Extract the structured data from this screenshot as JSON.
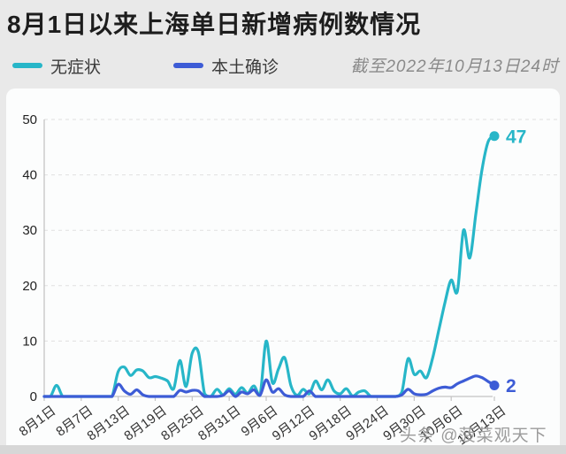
{
  "header": {
    "title": "8月1日以来上海单日新增病例数情况",
    "as_of": "截至2022年10月13日24时"
  },
  "legend": [
    {
      "label": "无症状",
      "color": "#27b6c8"
    },
    {
      "label": "本土确诊",
      "color": "#3d5cd6"
    }
  ],
  "watermark": "头条 @菠菜观天下",
  "colors": {
    "asymptomatic": "#27b6c8",
    "confirmed": "#3d5cd6",
    "axis": "#c4c4c4",
    "grid": "#e0e0e0",
    "tick_label": "#333333",
    "background": "#e9e9e9",
    "card": "#fcfdfd"
  },
  "chart_data": {
    "type": "line",
    "title": "8月1日以来上海单日新增病例数情况",
    "subtitle": "截至2022年10月13日24时",
    "grid": "dashed-horizontal",
    "legend_position": "top-left",
    "ylim": [
      0,
      50
    ],
    "y_ticks": [
      0,
      10,
      20,
      30,
      40,
      50
    ],
    "x_tick_labels": [
      "8月1日",
      "8月7日",
      "8月13日",
      "8月19日",
      "8月25日",
      "8月31日",
      "9月6日",
      "9月12日",
      "9月18日",
      "9月24日",
      "9月30日",
      "10月6日",
      "10月13日"
    ],
    "x_tick_days": [
      0,
      6,
      12,
      18,
      24,
      30,
      36,
      42,
      48,
      54,
      60,
      66,
      73
    ],
    "x_dates": [
      "8月1日",
      "8月2日",
      "8月3日",
      "8月4日",
      "8月5日",
      "8月6日",
      "8月7日",
      "8月8日",
      "8月9日",
      "8月10日",
      "8月11日",
      "8月12日",
      "8月13日",
      "8月14日",
      "8月15日",
      "8月16日",
      "8月17日",
      "8月18日",
      "8月19日",
      "8月20日",
      "8月21日",
      "8月22日",
      "8月23日",
      "8月24日",
      "8月25日",
      "8月26日",
      "8月27日",
      "8月28日",
      "8月29日",
      "8月30日",
      "8月31日",
      "9月1日",
      "9月2日",
      "9月3日",
      "9月4日",
      "9月5日",
      "9月6日",
      "9月7日",
      "9月8日",
      "9月9日",
      "9月10日",
      "9月11日",
      "9月12日",
      "9月13日",
      "9月14日",
      "9月15日",
      "9月16日",
      "9月17日",
      "9月18日",
      "9月19日",
      "9月20日",
      "9月21日",
      "9月22日",
      "9月23日",
      "9月24日",
      "9月25日",
      "9月26日",
      "9月27日",
      "9月28日",
      "9月29日",
      "9月30日",
      "10月1日",
      "10月2日",
      "10月3日",
      "10月4日",
      "10月5日",
      "10月6日",
      "10月7日",
      "10月8日",
      "10月9日",
      "10月10日",
      "10月11日",
      "10月12日",
      "10月13日"
    ],
    "series": [
      {
        "name": "无症状",
        "color": "#27b6c8",
        "end_label": "47",
        "end_value": 47,
        "values": [
          0,
          0,
          2,
          0,
          0,
          0,
          0,
          0,
          0,
          0,
          0,
          0,
          4.5,
          5.3,
          3.8,
          4.8,
          4.6,
          3.4,
          3.6,
          3.3,
          2.8,
          1.4,
          6.5,
          1.8,
          7.8,
          8,
          0.5,
          0,
          1.3,
          0.3,
          1.4,
          0.4,
          1.6,
          0.6,
          1.9,
          0.2,
          10,
          2.5,
          5,
          7,
          2,
          0.2,
          1.3,
          0.5,
          2.8,
          1.2,
          3,
          1,
          0.5,
          1.4,
          0.1,
          0.8,
          1,
          0,
          0,
          0,
          0,
          0,
          0.8,
          6.8,
          4,
          4.6,
          3.4,
          7,
          12,
          17,
          21,
          19,
          30,
          25,
          33,
          41,
          46,
          47
        ]
      },
      {
        "name": "本土确诊",
        "color": "#3d5cd6",
        "end_label": "2",
        "end_value": 2,
        "values": [
          0,
          0,
          0,
          0,
          0,
          0,
          0,
          0,
          0,
          0,
          0,
          0,
          2.2,
          1,
          0.4,
          1.2,
          0.3,
          0,
          0,
          0,
          0,
          0,
          1.1,
          0.8,
          1.1,
          1,
          0,
          0,
          0,
          0.2,
          1,
          0,
          0.8,
          0.5,
          1.2,
          0.2,
          3,
          0.8,
          1.4,
          0.3,
          0,
          0,
          0,
          1,
          0,
          0,
          0,
          0,
          0,
          0,
          0,
          0,
          0,
          0,
          0,
          0,
          0,
          0,
          0.3,
          1.3,
          0.5,
          0.3,
          0.4,
          1,
          1.5,
          1.7,
          1.6,
          2.3,
          2.8,
          3.3,
          3.7,
          3.4,
          2.7,
          2
        ]
      }
    ]
  }
}
